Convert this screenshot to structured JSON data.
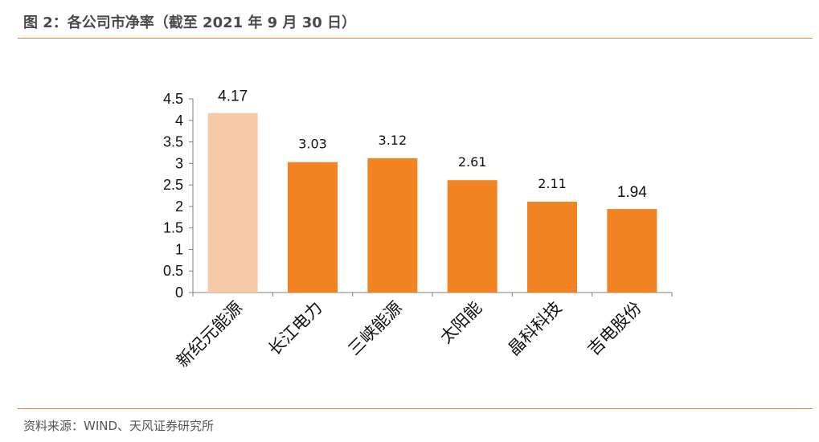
{
  "header": {
    "title": "图 2：各公司市净率（截至 2021 年 9 月 30 日）"
  },
  "footer": {
    "source": "资料来源：WIND、天风证券研究所"
  },
  "colors": {
    "accent": "#e08a2e",
    "bar": "#f28322",
    "bar_highlight": "#f7c9a6"
  },
  "chart_data": {
    "type": "bar",
    "title": "各公司市净率（截至 2021 年 9 月 30 日）",
    "xlabel": "",
    "ylabel": "",
    "categories": [
      "新纪元能源",
      "长江电力",
      "三峡能源",
      "太阳能",
      "晶科科技",
      "吉电股份"
    ],
    "values": [
      4.17,
      3.03,
      3.12,
      2.61,
      2.11,
      1.94
    ],
    "value_labels": [
      "4.17",
      "3.03",
      "3.12",
      "2.61",
      "2.11",
      "1.94"
    ],
    "highlight_index": 0,
    "ylim": [
      0,
      4.5
    ],
    "yticks": [
      "0",
      "0.5",
      "1",
      "1.5",
      "2",
      "2.5",
      "3",
      "3.5",
      "4",
      "4.5"
    ],
    "grid": false,
    "legend": "none"
  }
}
